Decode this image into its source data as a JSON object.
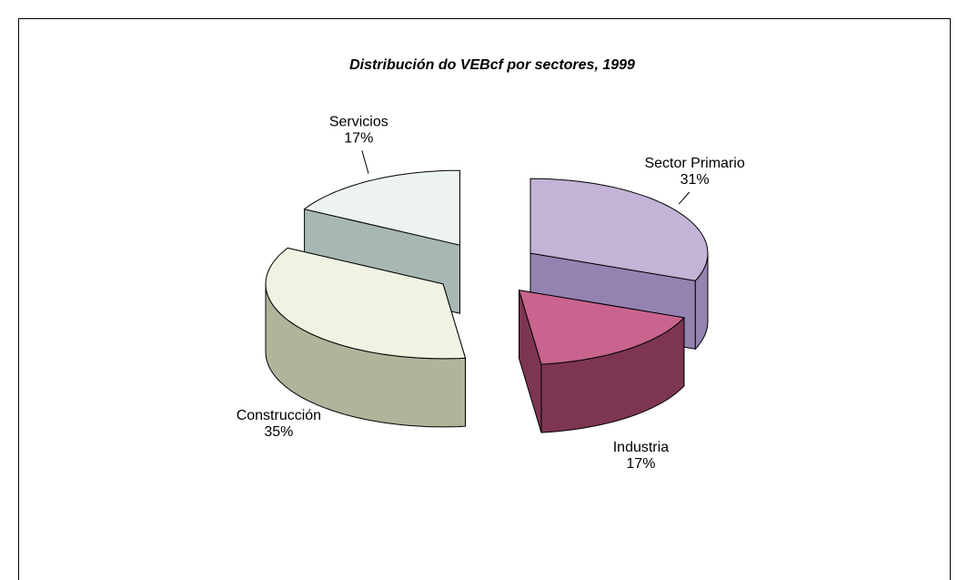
{
  "chart_data": {
    "type": "pie",
    "title": "Distribución do VEBcf por sectores, 1999",
    "categories": [
      "Sector Primario",
      "Industria",
      "Construcción",
      "Servicios"
    ],
    "values": [
      31,
      17,
      35,
      17
    ],
    "value_labels": [
      "31%",
      "17%",
      "35%",
      "17%"
    ],
    "colors": [
      "#c3b3d6",
      "#c8648e",
      "#f0f2e2",
      "#ecf3f0"
    ],
    "side_colors": [
      "#9483b0",
      "#7d3552",
      "#b0b49a",
      "#a7b8b4"
    ]
  }
}
